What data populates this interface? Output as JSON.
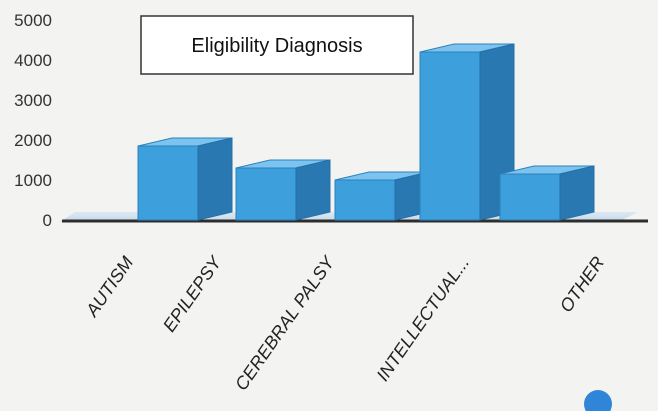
{
  "chart_data": {
    "type": "bar",
    "title": "Eligibility Diagnosis",
    "categories": [
      "AUTISM",
      "EPILEPSY",
      "CEREBRAL PALSY",
      "INTELLECTUAL...",
      "OTHER"
    ],
    "values": [
      1850,
      1300,
      1000,
      4200,
      1150
    ],
    "ylim": [
      0,
      5000
    ],
    "yticks": [
      0,
      1000,
      2000,
      3000,
      4000,
      5000
    ],
    "xlabel": "",
    "ylabel": "",
    "grid": false,
    "legend": "none",
    "bar_color": "#3d9fdc",
    "three_d": true
  }
}
